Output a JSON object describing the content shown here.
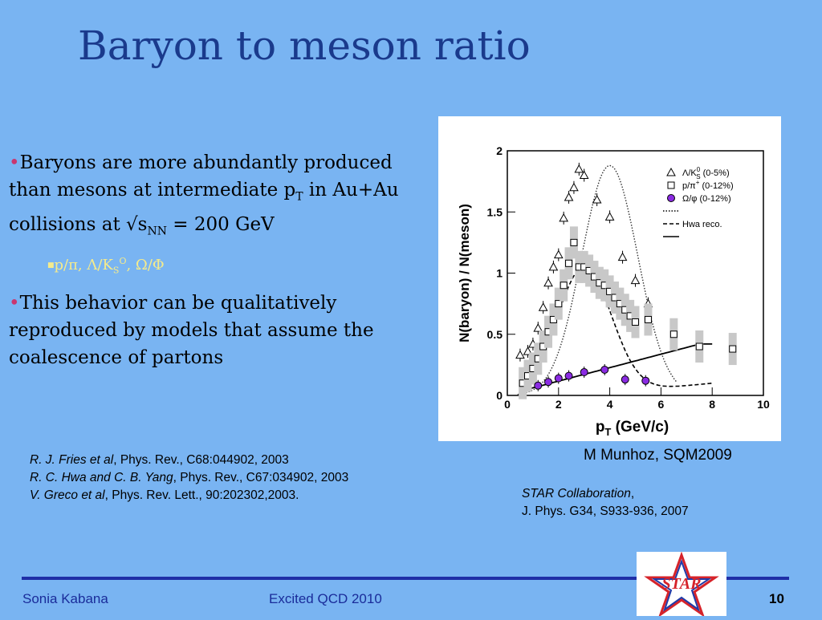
{
  "slide": {
    "title": "Baryon to meson ratio",
    "bullet1": {
      "part1": "Baryons are more abundantly produced than mesons at intermediate p",
      "sub1": "T",
      "part2": " in Au+Au collisions at √s",
      "sub2": "NN",
      "part3": " = 200 GeV"
    },
    "subbullet": {
      "t1": "p/π, Λ/K",
      "sub": "S",
      "t2": "O",
      "t3": ", Ω/Φ"
    },
    "bullet2": "This behavior can be qualitatively reproduced by models that assume the coalescence of partons",
    "credit": "M Munhoz, SQM2009",
    "refs": [
      {
        "authors": "R. J. Fries et al",
        "rest": ", Phys. Rev., C68:044902, 2003"
      },
      {
        "authors": "R. C. Hwa and C. B. Yang",
        "rest": ", Phys. Rev., C67:034902, 2003"
      },
      {
        "authors": "V. Greco et al",
        "rest": ", Phys. Rev. Lett., 90:202302,2003."
      }
    ],
    "star_ref": {
      "line1": "STAR Collaboration",
      "line1_tail": ",",
      "line2": "J. Phys. G34, S933-936, 2007"
    },
    "footer": {
      "author": "Sonia Kabana",
      "event": "Excited QCD 2010",
      "page": "10"
    },
    "logo_text": "STAR"
  },
  "chart_data": {
    "type": "scatter",
    "xlabel": "p",
    "xlabel_sub": "T",
    "xlabel_unit": " (GeV/c)",
    "ylabel": "N(baryon) / N(meson)",
    "xlim": [
      0,
      10
    ],
    "ylim": [
      0,
      2
    ],
    "x_ticks": [
      "0",
      "2",
      "4",
      "6",
      "8",
      "10"
    ],
    "y_ticks": [
      "0",
      "0.5",
      "1",
      "1.5",
      "2"
    ],
    "legend": [
      {
        "label": "Λ/K",
        "sub": "S",
        "sup": "0",
        "tail": " (0-5%)",
        "marker": "triangle"
      },
      {
        "label": "p/π",
        "sup": "+",
        "tail": " (0-12%)",
        "marker": "square"
      },
      {
        "label": "Ω/φ",
        "tail": "  (0-12%)",
        "marker": "circle"
      },
      {
        "label": "",
        "marker": "dotted"
      },
      {
        "label": "Hwa reco.",
        "marker": "dashed"
      },
      {
        "label": "",
        "marker": "solid"
      }
    ],
    "series": [
      {
        "marker": "triangle",
        "x": [
          0.5,
          0.8,
          1.0,
          1.2,
          1.4,
          1.6,
          1.8,
          2.0,
          2.2,
          2.4,
          2.6,
          2.8,
          3.0,
          3.5,
          4.0,
          4.5,
          5.0,
          5.5
        ],
        "y": [
          0.33,
          0.36,
          0.42,
          0.55,
          0.72,
          0.92,
          1.05,
          1.15,
          1.45,
          1.62,
          1.7,
          1.85,
          1.8,
          1.6,
          1.46,
          1.13,
          0.94,
          0.75
        ]
      },
      {
        "marker": "square",
        "x": [
          0.6,
          0.8,
          1.0,
          1.2,
          1.4,
          1.6,
          1.8,
          2.0,
          2.2,
          2.4,
          2.6,
          2.8,
          3.0,
          3.2,
          3.4,
          3.6,
          3.8,
          4.0,
          4.2,
          4.4,
          4.6,
          4.8,
          5.0,
          5.5,
          6.5,
          7.5,
          8.8
        ],
        "y": [
          0.1,
          0.16,
          0.22,
          0.3,
          0.4,
          0.52,
          0.62,
          0.75,
          0.9,
          1.08,
          1.25,
          1.05,
          1.05,
          1.02,
          0.97,
          0.92,
          0.9,
          0.85,
          0.8,
          0.75,
          0.7,
          0.65,
          0.6,
          0.62,
          0.5,
          0.4,
          0.38
        ]
      },
      {
        "marker": "circle",
        "x": [
          1.2,
          1.6,
          2.0,
          2.4,
          3.0,
          3.8,
          4.6,
          5.4
        ],
        "y": [
          0.08,
          0.11,
          0.14,
          0.16,
          0.19,
          0.21,
          0.13,
          0.12
        ]
      }
    ]
  }
}
